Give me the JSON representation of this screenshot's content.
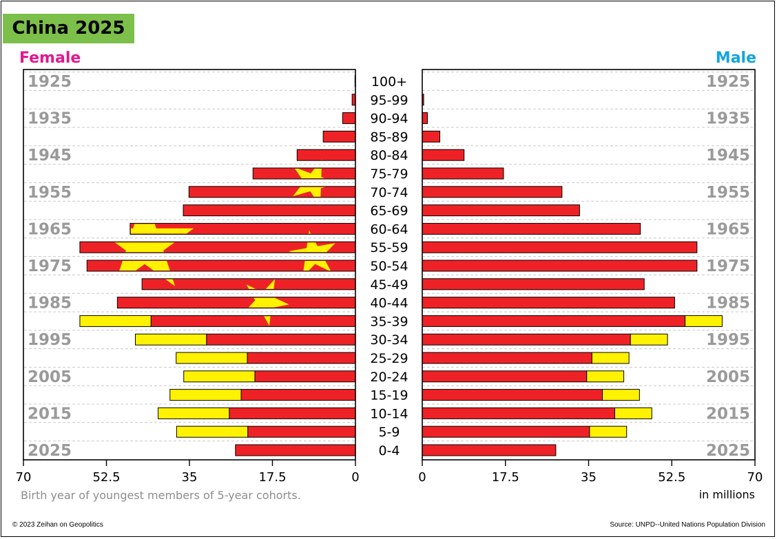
{
  "title": "China 2025",
  "female_label": "Female",
  "male_label": "Male",
  "note": "Birth year of youngest members of 5-year cohorts.",
  "unit": "in millions",
  "copyright": "© 2023 Zeihan on Geopolitics",
  "source": "Source: UNPD--United Nations Population Division",
  "colors": {
    "red": "#ee2226",
    "yellow": "#fff200",
    "female": "#e2188e",
    "male": "#12a5de",
    "title_bg": "#7cbf4a"
  },
  "chart_data": {
    "type": "bar",
    "orientation": "horizontal-population-pyramid",
    "categories": [
      "100+",
      "95-99",
      "90-94",
      "85-89",
      "80-84",
      "75-79",
      "70-74",
      "65-69",
      "60-64",
      "55-59",
      "50-54",
      "45-49",
      "40-44",
      "35-39",
      "30-34",
      "25-29",
      "20-24",
      "15-19",
      "10-14",
      "5-9",
      "0-4"
    ],
    "birth_year_labels": [
      "1925",
      "1935",
      "1945",
      "1955",
      "1965",
      "1975",
      "1985",
      "1995",
      "2005",
      "2015",
      "2025"
    ],
    "xlim": [
      0,
      70
    ],
    "x_ticks": [
      "70",
      "52.5",
      "35",
      "17.5",
      "0"
    ],
    "x_ticks_right": [
      "0",
      "17.5",
      "35",
      "52.5",
      "70"
    ],
    "series": [
      {
        "side": "female",
        "values": [
          0.1,
          0.7,
          2.7,
          6.8,
          12.3,
          21.6,
          35.1,
          36.3,
          47.5,
          58.1,
          56.6,
          45.0,
          50.2,
          58.1,
          46.4,
          37.8,
          36.2,
          39.1,
          41.6,
          37.7,
          25.3
        ],
        "excess": [
          0,
          0,
          0,
          0,
          0,
          0,
          0,
          0,
          0,
          0,
          0,
          0,
          0,
          15.0,
          15.0,
          15.0,
          15.0,
          15.0,
          15.0,
          15.0,
          0
        ]
      },
      {
        "side": "male",
        "values": [
          0.05,
          0.3,
          1.1,
          3.7,
          8.8,
          17.1,
          29.4,
          33.1,
          45.9,
          57.8,
          57.8,
          46.7,
          53.1,
          63.1,
          51.6,
          43.5,
          42.4,
          45.7,
          48.3,
          43.0,
          28.1
        ],
        "excess": [
          0,
          0,
          0,
          0,
          0,
          0,
          0,
          0,
          0,
          0,
          0,
          0,
          0,
          7.8,
          7.8,
          7.8,
          7.8,
          7.8,
          7.8,
          7.8,
          0
        ]
      }
    ]
  }
}
